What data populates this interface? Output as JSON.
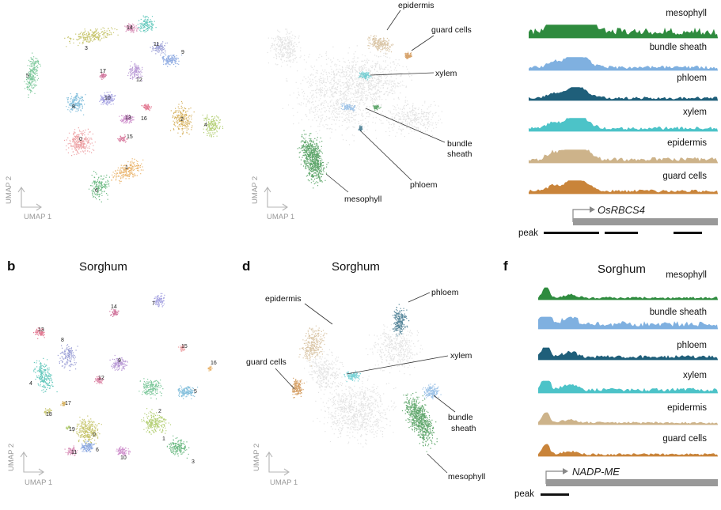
{
  "panels": {
    "b": {
      "letter": "b",
      "title": "Sorghum"
    },
    "d": {
      "letter": "d",
      "title": "Sorghum"
    },
    "f": {
      "letter": "f",
      "title": "Sorghum"
    }
  },
  "axes": {
    "x": "UMAP 1",
    "y": "UMAP 2"
  },
  "cell_types": {
    "mesophyll": "mesophyll",
    "bundle_sheath_line1": "bundle",
    "bundle_sheath_line2": "sheath",
    "bundle_sheath": "bundle sheath",
    "phloem": "phloem",
    "xylem": "xylem",
    "epidermis": "epidermis",
    "guard_cells": "guard cells"
  },
  "colors": {
    "mesophyll": "#2e8b3e",
    "bundle_sheath": "#7fb0e0",
    "phloem": "#1f5f7a",
    "xylem": "#4cc3c8",
    "epidermis": "#cdb38a",
    "guard_cells": "#c9843a",
    "background_cells": "#d9d9d9"
  },
  "tracks": {
    "top": {
      "gene": "OsRBCS4",
      "order": [
        "mesophyll",
        "bundle_sheath",
        "phloem",
        "xylem",
        "epidermis",
        "guard_cells"
      ]
    },
    "bottom": {
      "gene": "NADP-ME",
      "order": [
        "mesophyll",
        "bundle_sheath",
        "phloem",
        "xylem",
        "epidermis",
        "guard_cells"
      ]
    }
  },
  "peak_label": "peak",
  "clusters_top": [
    "0",
    "1",
    "2",
    "3",
    "4",
    "5",
    "6",
    "7",
    "8",
    "9",
    "10",
    "11",
    "12",
    "13",
    "14",
    "15",
    "16",
    "17"
  ],
  "clusters_bottom": [
    "0",
    "1",
    "2",
    "3",
    "4",
    "5",
    "6",
    "7",
    "8",
    "9",
    "10",
    "11",
    "12",
    "13",
    "14",
    "15",
    "16",
    "17",
    "18",
    "19"
  ]
}
